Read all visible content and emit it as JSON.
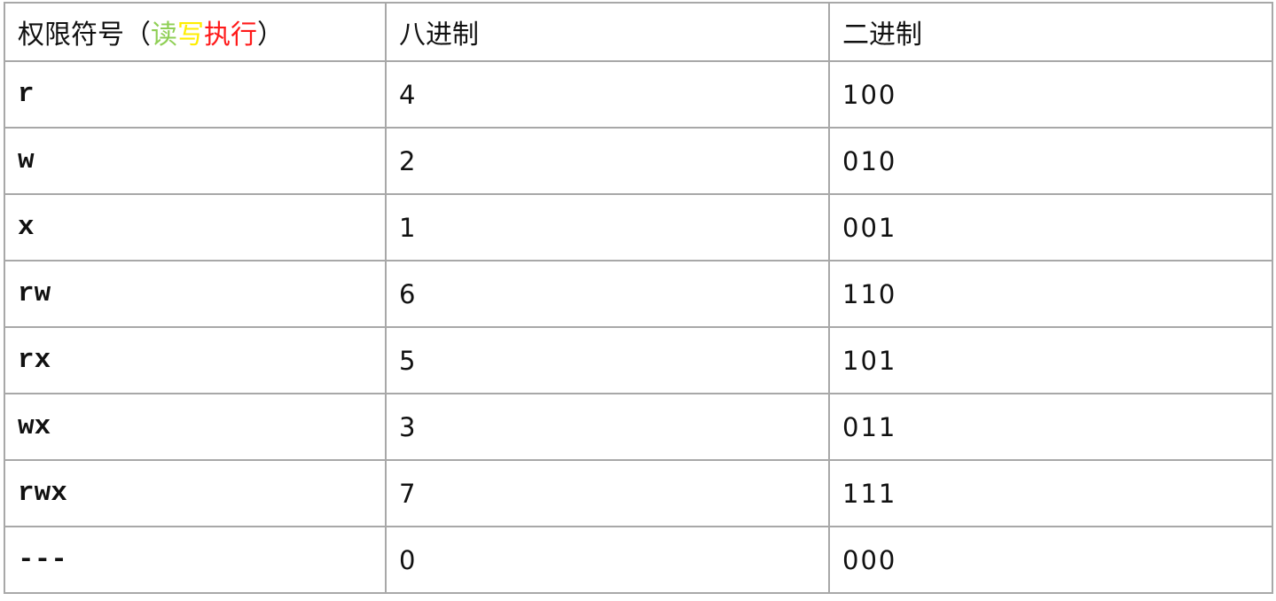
{
  "table": {
    "headers": {
      "col1": {
        "prefix": "权限符号（",
        "read": "读",
        "write": "写",
        "execute": "执行",
        "suffix": "）"
      },
      "col2": "八进制",
      "col3": "二进制"
    },
    "header_colors": {
      "read": "#8fcf55",
      "write": "#ffee00",
      "execute": "#ff1a1a"
    },
    "rows": [
      {
        "symbol": "r",
        "octal": "4",
        "binary": "100"
      },
      {
        "symbol": "w",
        "octal": "2",
        "binary": "010"
      },
      {
        "symbol": "x",
        "octal": "1",
        "binary": "001"
      },
      {
        "symbol": "rw",
        "octal": "6",
        "binary": "110"
      },
      {
        "symbol": "rx",
        "octal": "5",
        "binary": "101"
      },
      {
        "symbol": "wx",
        "octal": "3",
        "binary": "011"
      },
      {
        "symbol": "rwx",
        "octal": "7",
        "binary": "111"
      },
      {
        "symbol": "---",
        "octal": "0",
        "binary": "000"
      }
    ]
  }
}
